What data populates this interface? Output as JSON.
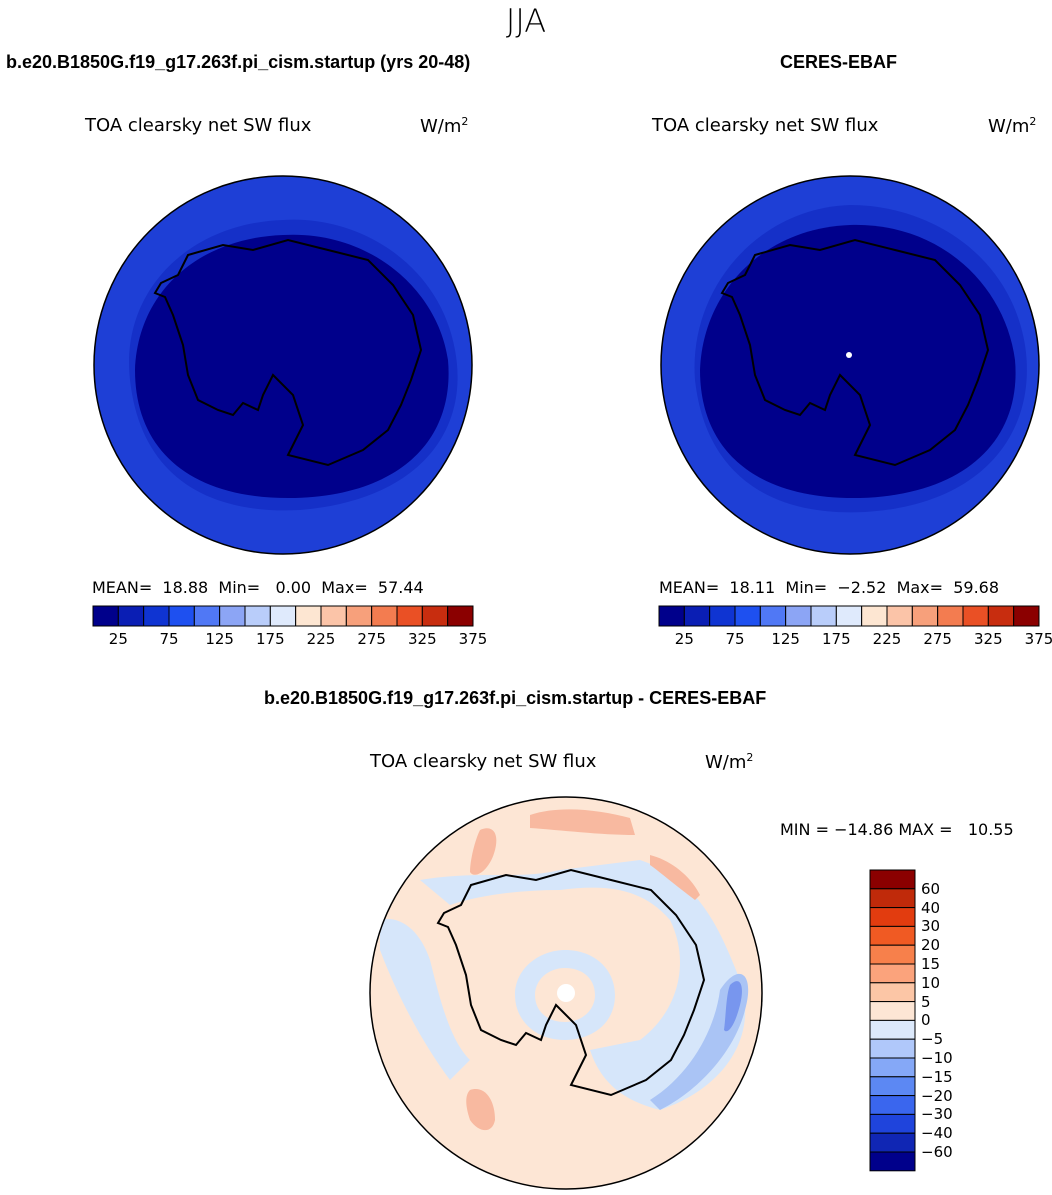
{
  "figure": {
    "season": "JJA",
    "top_left": {
      "title": "b.e20.B1850G.f19_g17.263f.pi_cism.startup (yrs 20-48)",
      "variable": "TOA clearsky net SW flux",
      "units": "W/m",
      "units_sup": "2",
      "stats": {
        "mean_label": "MEAN=",
        "mean": "18.88",
        "min_label": "Min=",
        "min": "0.00",
        "max_label": "Max=",
        "max": "57.44"
      },
      "field": {
        "ring_mean": "25-50",
        "interior": "0-25"
      }
    },
    "top_right": {
      "title": "CERES-EBAF",
      "variable": "TOA clearsky net SW flux",
      "units": "W/m",
      "units_sup": "2",
      "stats": {
        "mean_label": "MEAN=",
        "mean": "18.11",
        "min_label": "Min=",
        "min": "−2.52",
        "max_label": "Max=",
        "max": "59.68"
      }
    },
    "abs_colorbar": {
      "colors": [
        "#00008b",
        "#0a1eb4",
        "#0f34d2",
        "#1e50f0",
        "#5078f5",
        "#8ca5f5",
        "#b9cdfa",
        "#dfeafc",
        "#fde6d2",
        "#fbc4a8",
        "#f7a07b",
        "#f37c50",
        "#ea5025",
        "#c82d0f",
        "#8b0000"
      ],
      "labels": [
        "25",
        "75",
        "125",
        "175",
        "225",
        "275",
        "325",
        "375"
      ]
    },
    "bottom": {
      "title": "b.e20.B1850G.f19_g17.263f.pi_cism.startup - CERES-EBAF",
      "variable": "TOA clearsky net SW flux",
      "units": "W/m",
      "units_sup": "2",
      "minmax": "MIN = −14.86 MAX =   10.55",
      "colorbar": {
        "colors_top_to_bottom": [
          "#8b0000",
          "#c02a0a",
          "#e23c0f",
          "#f05a23",
          "#f7804b",
          "#fba37c",
          "#fcc6a6",
          "#fde6d5",
          "#dce9fb",
          "#b0c8fa",
          "#85a8f7",
          "#5c88f3",
          "#3a66ee",
          "#1f44dc",
          "#1026b4",
          "#00008b"
        ],
        "labels_top_to_bottom": [
          "60",
          "40",
          "30",
          "20",
          "15",
          "10",
          "5",
          "0",
          "−5",
          "−10",
          "−15",
          "−20",
          "−30",
          "−40",
          "−60"
        ]
      }
    },
    "colors": {
      "deep_blue": "#00008b",
      "ring_blue": "#1e3fd6",
      "mid_blue": "#1530c8",
      "diff_background": "#fde6d5",
      "diff_light_blue": "#d6e6fa",
      "diff_mid_blue": "#aac4f5",
      "diff_strong_blue": "#7896ee",
      "diff_salmon": "#f8b9a0"
    }
  }
}
